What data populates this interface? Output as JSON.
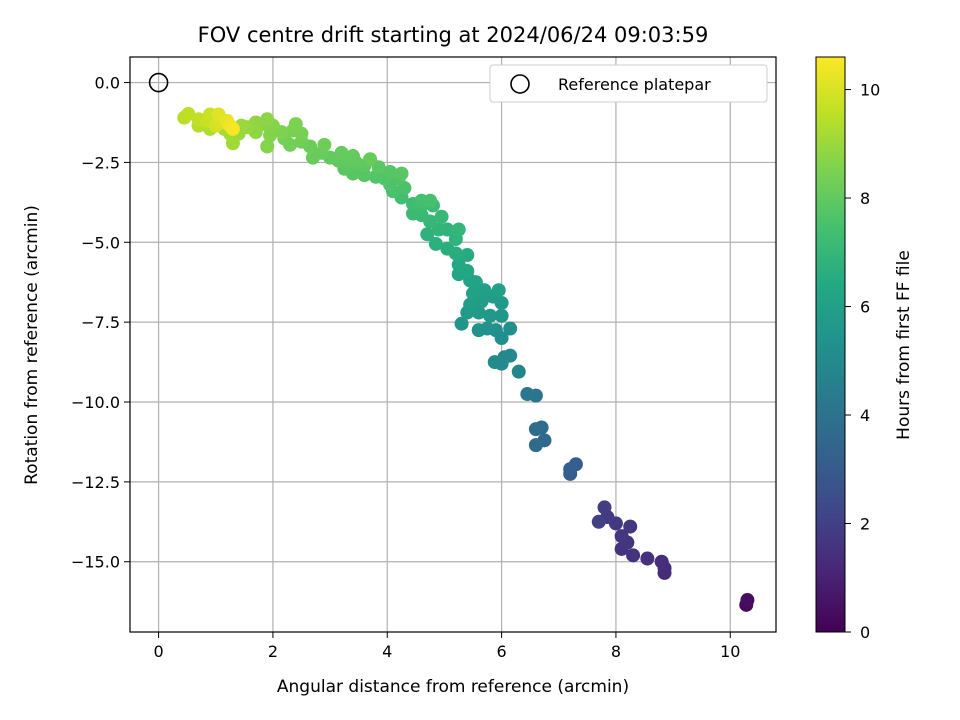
{
  "chart_data": {
    "type": "scatter",
    "title": "FOV centre drift starting at 2024/06/24 09:03:59",
    "xlabel": "Angular distance from reference (arcmin)",
    "ylabel": "Rotation from reference (arcmin)",
    "xlim": [
      -0.5,
      10.8
    ],
    "ylim": [
      -17.2,
      0.8
    ],
    "xticks": [
      0,
      2,
      4,
      6,
      8,
      10
    ],
    "xtick_labels": [
      "0",
      "2",
      "4",
      "6",
      "8",
      "10"
    ],
    "yticks": [
      0.0,
      -2.5,
      -5.0,
      -7.5,
      -10.0,
      -12.5,
      -15.0
    ],
    "ytick_labels": [
      "0.0",
      "−2.5",
      "−5.0",
      "−7.5",
      "−10.0",
      "−12.5",
      "−15.0"
    ],
    "grid": true,
    "legend": {
      "placement": "upper right",
      "entries": [
        {
          "label": "Reference platepar",
          "marker": "open-circle"
        }
      ]
    },
    "colorbar": {
      "label": "Hours from first FF file",
      "colormap": "viridis",
      "range": [
        0,
        10.6
      ],
      "ticks": [
        0,
        2,
        4,
        6,
        8,
        10
      ],
      "tick_labels": [
        "0",
        "2",
        "4",
        "6",
        "8",
        "10"
      ]
    },
    "reference_point": {
      "x": 0.0,
      "y": 0.0
    },
    "series": [
      {
        "points": [
          [
            10.28,
            -16.35,
            0.2
          ],
          [
            10.3,
            -16.2,
            0.4
          ],
          [
            8.85,
            -15.35,
            1.3
          ],
          [
            8.85,
            -15.2,
            1.35
          ],
          [
            8.8,
            -15.0,
            1.4
          ],
          [
            8.55,
            -14.9,
            1.5
          ],
          [
            8.3,
            -14.8,
            1.55
          ],
          [
            8.1,
            -14.6,
            1.6
          ],
          [
            8.2,
            -14.4,
            1.62
          ],
          [
            8.1,
            -14.2,
            1.65
          ],
          [
            8.25,
            -13.9,
            1.7
          ],
          [
            8.0,
            -13.8,
            1.75
          ],
          [
            7.85,
            -13.6,
            1.8
          ],
          [
            7.8,
            -13.3,
            1.9
          ],
          [
            7.7,
            -13.75,
            1.95
          ],
          [
            7.3,
            -11.95,
            3.1
          ],
          [
            7.2,
            -12.25,
            3.15
          ],
          [
            7.2,
            -12.1,
            3.2
          ],
          [
            6.75,
            -11.2,
            3.6
          ],
          [
            6.6,
            -11.35,
            3.65
          ],
          [
            6.7,
            -10.8,
            3.7
          ],
          [
            6.6,
            -10.85,
            3.75
          ],
          [
            6.6,
            -9.8,
            4.1
          ],
          [
            6.45,
            -9.75,
            4.2
          ],
          [
            6.3,
            -9.05,
            4.8
          ],
          [
            6.15,
            -8.55,
            4.9
          ],
          [
            6.05,
            -8.6,
            4.95
          ],
          [
            6.0,
            -8.8,
            5.0
          ],
          [
            5.88,
            -8.75,
            5.05
          ],
          [
            6.15,
            -7.7,
            5.2
          ],
          [
            6.0,
            -8.0,
            5.25
          ],
          [
            5.9,
            -7.75,
            5.3
          ],
          [
            5.75,
            -7.7,
            5.35
          ],
          [
            5.6,
            -7.75,
            5.4
          ],
          [
            5.3,
            -7.55,
            5.5
          ],
          [
            6.0,
            -7.3,
            5.55
          ],
          [
            5.8,
            -7.3,
            5.6
          ],
          [
            5.6,
            -7.2,
            5.65
          ],
          [
            5.4,
            -7.2,
            5.7
          ],
          [
            6.0,
            -6.9,
            5.75
          ],
          [
            5.85,
            -6.7,
            5.8
          ],
          [
            5.65,
            -6.85,
            5.85
          ],
          [
            5.45,
            -6.95,
            5.9
          ],
          [
            5.95,
            -6.5,
            5.95
          ],
          [
            5.7,
            -6.5,
            6.0
          ],
          [
            5.5,
            -6.6,
            6.05
          ],
          [
            5.55,
            -6.25,
            6.1
          ],
          [
            5.45,
            -6.2,
            6.15
          ],
          [
            5.25,
            -6.0,
            6.2
          ],
          [
            5.4,
            -5.9,
            6.3
          ],
          [
            5.25,
            -5.7,
            6.35
          ],
          [
            5.4,
            -5.4,
            6.45
          ],
          [
            5.2,
            -5.35,
            6.55
          ],
          [
            5.05,
            -5.2,
            6.6
          ],
          [
            4.85,
            -5.05,
            6.7
          ],
          [
            4.7,
            -4.75,
            6.75
          ],
          [
            5.2,
            -4.9,
            6.8
          ],
          [
            5.05,
            -4.6,
            6.85
          ],
          [
            4.9,
            -4.6,
            6.9
          ],
          [
            5.25,
            -4.6,
            6.95
          ],
          [
            4.75,
            -4.35,
            7.0
          ],
          [
            4.95,
            -4.2,
            7.05
          ],
          [
            4.6,
            -4.15,
            7.1
          ],
          [
            4.45,
            -4.1,
            7.15
          ],
          [
            4.8,
            -3.85,
            7.2
          ],
          [
            4.6,
            -3.85,
            7.25
          ],
          [
            4.45,
            -3.8,
            7.3
          ],
          [
            4.25,
            -3.6,
            7.35
          ],
          [
            4.6,
            -3.7,
            7.4
          ],
          [
            4.75,
            -3.7,
            7.45
          ],
          [
            4.1,
            -3.4,
            7.5
          ],
          [
            4.3,
            -3.3,
            7.55
          ],
          [
            4.05,
            -3.2,
            7.6
          ],
          [
            4.2,
            -3.0,
            7.65
          ],
          [
            3.95,
            -3.0,
            7.7
          ],
          [
            3.8,
            -2.95,
            7.72
          ],
          [
            4.05,
            -2.8,
            7.75
          ],
          [
            3.6,
            -2.9,
            7.78
          ],
          [
            3.55,
            -2.75,
            7.8
          ],
          [
            4.25,
            -2.85,
            7.82
          ],
          [
            3.4,
            -2.85,
            7.85
          ],
          [
            3.85,
            -2.65,
            7.87
          ],
          [
            3.25,
            -2.7,
            7.9
          ],
          [
            3.6,
            -2.6,
            7.92
          ],
          [
            3.45,
            -2.5,
            7.95
          ],
          [
            3.3,
            -2.5,
            7.97
          ],
          [
            3.15,
            -2.45,
            8.0
          ],
          [
            3.0,
            -2.35,
            8.02
          ],
          [
            3.4,
            -2.3,
            8.05
          ],
          [
            3.2,
            -2.2,
            8.08
          ],
          [
            3.7,
            -2.4,
            8.1
          ],
          [
            2.85,
            -2.2,
            8.12
          ],
          [
            2.7,
            -2.35,
            8.15
          ],
          [
            2.65,
            -2.0,
            8.2
          ],
          [
            2.9,
            -1.95,
            8.25
          ],
          [
            2.5,
            -1.85,
            8.28
          ],
          [
            2.3,
            -1.95,
            8.3
          ],
          [
            2.2,
            -1.75,
            8.35
          ],
          [
            2.5,
            -1.6,
            8.4
          ],
          [
            2.35,
            -1.5,
            8.45
          ],
          [
            2.4,
            -1.3,
            8.5
          ],
          [
            2.15,
            -1.55,
            8.55
          ],
          [
            1.95,
            -1.65,
            8.6
          ],
          [
            1.9,
            -2.0,
            8.62
          ],
          [
            2.0,
            -1.35,
            8.65
          ],
          [
            1.85,
            -1.3,
            8.7
          ],
          [
            1.9,
            -1.15,
            8.75
          ],
          [
            1.7,
            -1.55,
            8.8
          ],
          [
            1.7,
            -1.25,
            8.85
          ],
          [
            1.55,
            -1.4,
            8.9
          ],
          [
            1.4,
            -1.6,
            8.95
          ],
          [
            1.45,
            -1.35,
            9.0
          ],
          [
            1.3,
            -1.9,
            9.1
          ],
          [
            1.25,
            -1.6,
            9.15
          ],
          [
            1.15,
            -1.45,
            9.2
          ],
          [
            0.9,
            -1.45,
            9.3
          ],
          [
            0.7,
            -1.35,
            9.4
          ],
          [
            0.45,
            -1.1,
            9.5
          ],
          [
            0.52,
            -0.98,
            9.55
          ],
          [
            0.7,
            -1.15,
            9.6
          ],
          [
            0.85,
            -1.2,
            9.7
          ],
          [
            0.9,
            -1.0,
            9.75
          ],
          [
            1.05,
            -1.1,
            9.8
          ],
          [
            1.0,
            -1.35,
            9.9
          ],
          [
            1.1,
            -1.25,
            10.0
          ],
          [
            1.05,
            -1.0,
            10.1
          ],
          [
            1.2,
            -1.2,
            10.2
          ],
          [
            1.25,
            -1.35,
            10.35
          ],
          [
            1.3,
            -1.45,
            10.5
          ]
        ]
      }
    ]
  }
}
